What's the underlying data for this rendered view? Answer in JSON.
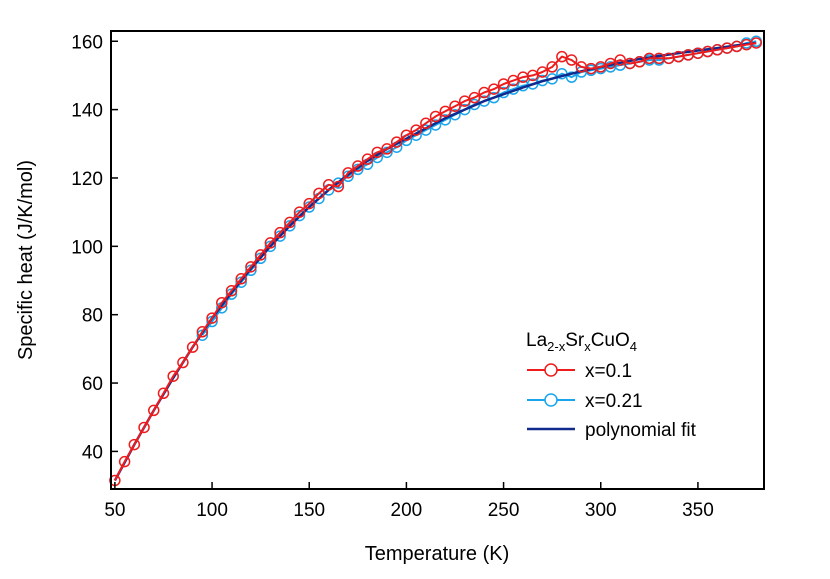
{
  "chart_data": {
    "type": "scatter",
    "xlabel": "Temperature (K)",
    "ylabel": "Specific heat (J/K/mol)",
    "xlim": [
      48,
      384
    ],
    "ylim": [
      29,
      163
    ],
    "xticks": [
      50,
      100,
      150,
      200,
      250,
      300,
      350
    ],
    "yticks": [
      40,
      60,
      80,
      100,
      120,
      140,
      160
    ],
    "grid": false,
    "legend": {
      "position": "bottom-right",
      "title_parts": [
        {
          "text": "La",
          "role": "normal"
        },
        {
          "text": "2-x",
          "role": "sub"
        },
        {
          "text": "Sr",
          "role": "normal"
        },
        {
          "text": "x",
          "role": "sub"
        },
        {
          "text": "CuO",
          "role": "normal"
        },
        {
          "text": "4",
          "role": "sub"
        }
      ]
    },
    "series": [
      {
        "name": "x=0.1",
        "color": "#ee1c1c",
        "marker": "open-circle",
        "x": [
          50,
          55,
          60,
          65,
          70,
          75,
          80,
          85,
          90,
          95,
          100,
          105,
          110,
          115,
          120,
          125,
          130,
          135,
          140,
          145,
          150,
          155,
          160,
          165,
          170,
          175,
          180,
          185,
          190,
          195,
          200,
          205,
          210,
          215,
          220,
          225,
          230,
          235,
          240,
          245,
          250,
          255,
          260,
          265,
          270,
          275,
          280,
          285,
          290,
          295,
          300,
          305,
          310,
          315,
          320,
          325,
          330,
          335,
          340,
          345,
          350,
          355,
          360,
          365,
          370,
          375,
          380
        ],
        "y": [
          31.5,
          37,
          42,
          47,
          52,
          57,
          62,
          66,
          70.5,
          75,
          79,
          83.5,
          87,
          90.5,
          94,
          97.5,
          101,
          104,
          107,
          110,
          112.5,
          115.5,
          118,
          117.5,
          121.5,
          123.5,
          125.5,
          127.5,
          128.5,
          130.5,
          132.5,
          134,
          136,
          138,
          139.5,
          141,
          142.5,
          143.5,
          145,
          146,
          147.5,
          148.5,
          149.5,
          150,
          151,
          152.5,
          155.5,
          154.5,
          152.5,
          152,
          152.5,
          153.5,
          154.5,
          153.5,
          154,
          155,
          155,
          155,
          155.5,
          156,
          156.5,
          157,
          157.5,
          158,
          158.5,
          159,
          159.5
        ]
      },
      {
        "name": "x=0.21",
        "color": "#19a5ec",
        "marker": "open-circle",
        "x": [
          95,
          100,
          105,
          110,
          115,
          120,
          125,
          130,
          135,
          140,
          145,
          150,
          155,
          160,
          165,
          170,
          175,
          180,
          185,
          190,
          195,
          200,
          205,
          210,
          215,
          220,
          225,
          230,
          235,
          240,
          245,
          250,
          255,
          260,
          265,
          270,
          275,
          280,
          285,
          290,
          295,
          300,
          305,
          310,
          315,
          320,
          325,
          330,
          335,
          340,
          345,
          350,
          355,
          360,
          365,
          370,
          375,
          380
        ],
        "y": [
          74,
          78,
          82,
          86,
          89.5,
          93,
          96.5,
          100,
          103,
          106,
          109,
          111.5,
          114,
          116.5,
          118.5,
          120.5,
          122.5,
          124,
          126,
          127.5,
          129,
          131,
          132.5,
          134,
          135.5,
          137,
          138.5,
          140,
          141.5,
          142.5,
          143.5,
          145,
          146,
          147,
          147.5,
          148.5,
          149,
          150.5,
          149.5,
          151,
          151.5,
          152,
          152.5,
          153,
          153.5,
          154,
          154.5,
          154.5,
          155,
          155.5,
          156,
          156.5,
          157,
          157.5,
          158,
          158.5,
          159.5,
          160
        ]
      },
      {
        "name": "polynomial fit",
        "color": "#102a8e",
        "marker": "none",
        "x": [
          50,
          60,
          70,
          80,
          90,
          100,
          110,
          120,
          130,
          140,
          150,
          160,
          170,
          180,
          190,
          200,
          210,
          220,
          230,
          240,
          250,
          260,
          270,
          280,
          290,
          300,
          310,
          320,
          330,
          340,
          350,
          360,
          370,
          380
        ],
        "y": [
          31.5,
          42,
          52,
          61.5,
          70.5,
          79,
          86.5,
          93.5,
          100,
          106,
          111.5,
          116.5,
          121,
          125,
          128.5,
          131.5,
          134.5,
          137.5,
          140,
          142.5,
          144.5,
          146.5,
          148.3,
          149.8,
          151.2,
          152.5,
          153.7,
          154.8,
          155.7,
          156.5,
          157.3,
          158,
          158.8,
          159.5
        ]
      }
    ]
  }
}
